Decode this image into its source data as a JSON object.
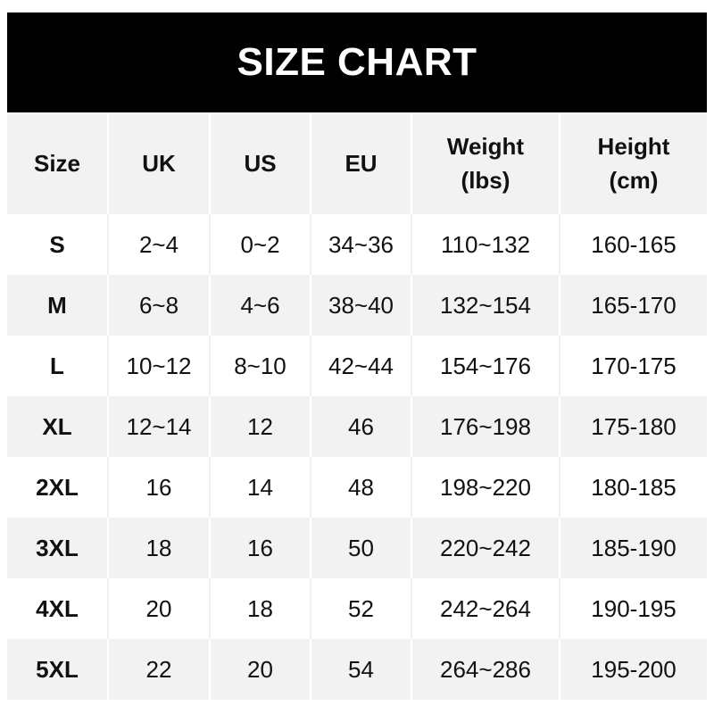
{
  "title": "SIZE CHART",
  "headers": [
    {
      "line1": "Size",
      "line2": ""
    },
    {
      "line1": "UK",
      "line2": ""
    },
    {
      "line1": "US",
      "line2": ""
    },
    {
      "line1": "EU",
      "line2": ""
    },
    {
      "line1": "Weight",
      "line2": "(lbs)"
    },
    {
      "line1": "Height",
      "line2": "(cm)"
    }
  ],
  "rows": [
    [
      "S",
      "2~4",
      "0~2",
      "34~36",
      "110~132",
      "160-165"
    ],
    [
      "M",
      "6~8",
      "4~6",
      "38~40",
      "132~154",
      "165-170"
    ],
    [
      "L",
      "10~12",
      "8~10",
      "42~44",
      "154~176",
      "170-175"
    ],
    [
      "XL",
      "12~14",
      "12",
      "46",
      "176~198",
      "175-180"
    ],
    [
      "2XL",
      "16",
      "14",
      "48",
      "198~220",
      "180-185"
    ],
    [
      "3XL",
      "18",
      "16",
      "50",
      "220~242",
      "185-190"
    ],
    [
      "4XL",
      "20",
      "18",
      "52",
      "242~264",
      "190-195"
    ],
    [
      "5XL",
      "22",
      "20",
      "54",
      "264~286",
      "195-200"
    ]
  ],
  "colors": {
    "banner": "#000000",
    "row_alt": "#f2f2f2"
  }
}
